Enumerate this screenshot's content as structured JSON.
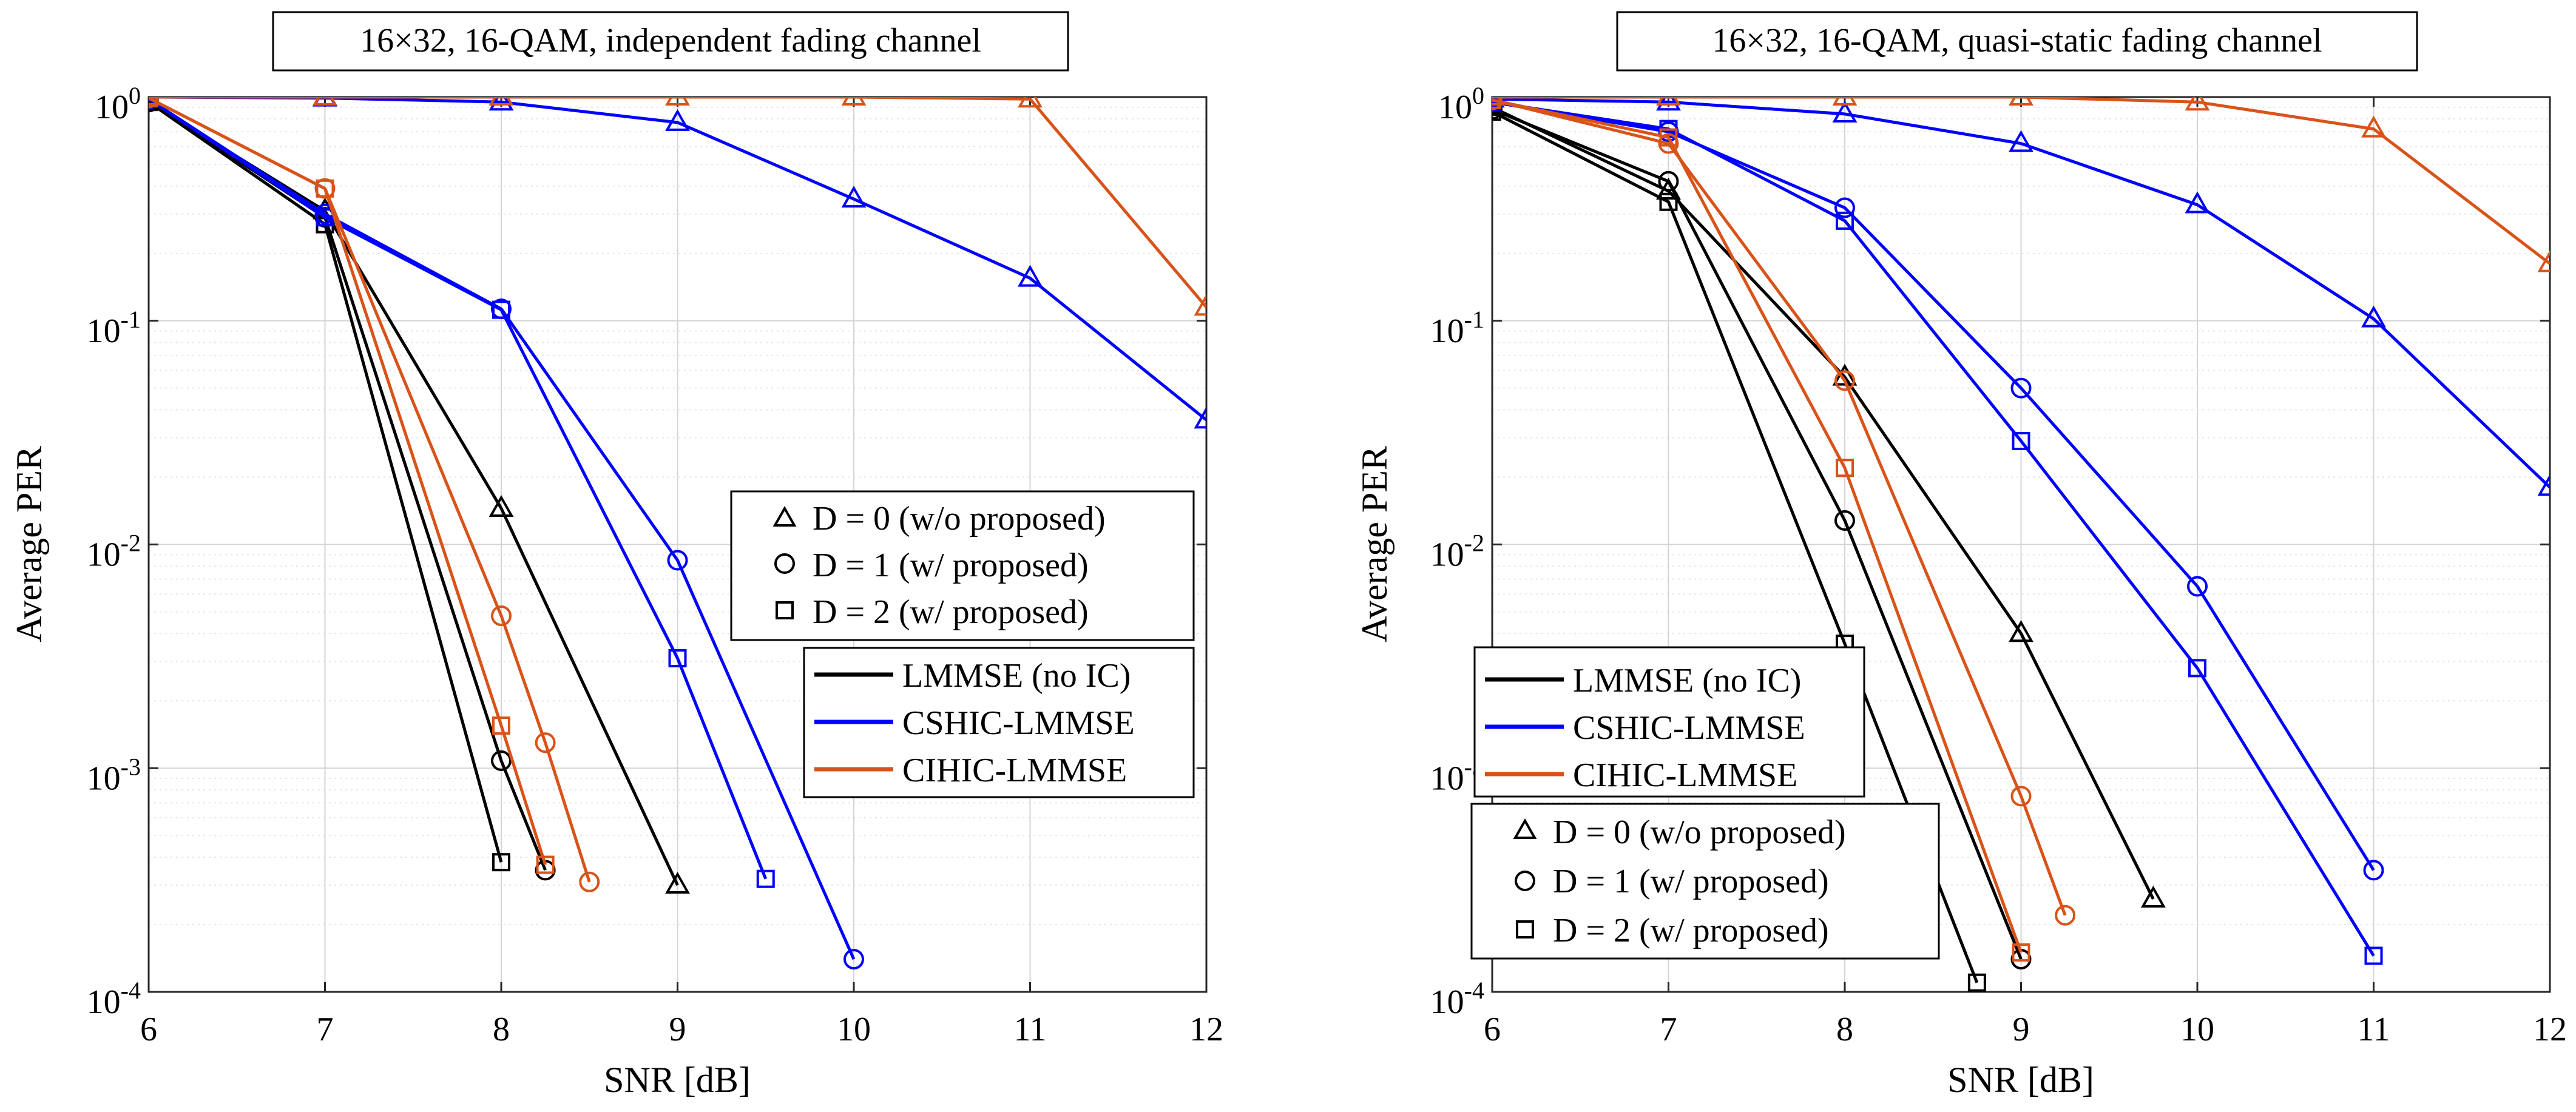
{
  "chart_data": [
    {
      "type": "line",
      "title": "16×32, 16-QAM, independent fading channel",
      "xlabel": "SNR [dB]",
      "ylabel": "Average PER",
      "xlim": [
        6,
        12
      ],
      "ylim": [
        0.0001,
        1
      ],
      "yscale": "log",
      "grid": true,
      "x_ticks": [
        "6",
        "7",
        "8",
        "9",
        "10",
        "11",
        "12"
      ],
      "y_ticks": [
        {
          "base": "10",
          "exp": "0"
        },
        {
          "base": "10",
          "exp": "-1"
        },
        {
          "base": "10",
          "exp": "-2"
        },
        {
          "base": "10",
          "exp": "-3"
        },
        {
          "base": "10",
          "exp": "-4"
        }
      ],
      "legend_marker": {
        "position": "center-right",
        "entries": [
          {
            "marker": "triangle",
            "label": "D = 0 (w/o proposed)"
          },
          {
            "marker": "circle",
            "label": "D = 1 (w/ proposed)"
          },
          {
            "marker": "square",
            "label": "D = 2 (w/ proposed)"
          }
        ]
      },
      "legend_color": {
        "position": "lower-right",
        "entries": [
          {
            "color": "#000000",
            "label": "LMMSE (no IC)"
          },
          {
            "color": "#0000ff",
            "label": "CSHIC-LMMSE"
          },
          {
            "color": "#d95319",
            "label": "CIHIC-LMMSE"
          }
        ]
      },
      "series": [
        {
          "name": "LMMSE (no IC), D = 0",
          "color": "#000000",
          "marker": "triangle",
          "x": [
            6,
            7,
            8,
            9
          ],
          "y": [
            0.95,
            0.31,
            0.0145,
            0.0003
          ]
        },
        {
          "name": "LMMSE (no IC), D = 1",
          "color": "#000000",
          "marker": "circle",
          "x": [
            6,
            7,
            8,
            8.25
          ],
          "y": [
            0.95,
            0.29,
            0.00108,
            0.00035
          ]
        },
        {
          "name": "LMMSE (no IC), D = 2",
          "color": "#000000",
          "marker": "square",
          "x": [
            6,
            7,
            8
          ],
          "y": [
            0.95,
            0.27,
            0.00038
          ]
        },
        {
          "name": "CSHIC-LMMSE, D = 0",
          "color": "#0000ff",
          "marker": "triangle",
          "x": [
            6,
            7,
            8,
            9,
            10,
            11,
            12
          ],
          "y": [
            1.0,
            0.99,
            0.95,
            0.77,
            0.35,
            0.155,
            0.036
          ]
        },
        {
          "name": "CSHIC-LMMSE, D = 1",
          "color": "#0000ff",
          "marker": "circle",
          "x": [
            6,
            7,
            8,
            9,
            10
          ],
          "y": [
            0.98,
            0.3,
            0.113,
            0.0085,
            0.00014
          ]
        },
        {
          "name": "CSHIC-LMMSE, D = 2",
          "color": "#0000ff",
          "marker": "square",
          "x": [
            6,
            7,
            8,
            9,
            9.5
          ],
          "y": [
            0.98,
            0.29,
            0.112,
            0.0031,
            0.00032
          ]
        },
        {
          "name": "CIHIC-LMMSE, D = 0",
          "color": "#d95319",
          "marker": "triangle",
          "x": [
            6,
            7,
            8,
            9,
            10,
            11,
            12
          ],
          "y": [
            1.0,
            1.0,
            1.0,
            1.0,
            1.0,
            0.98,
            0.115
          ]
        },
        {
          "name": "CIHIC-LMMSE, D = 1",
          "color": "#d95319",
          "marker": "circle",
          "x": [
            6,
            7,
            8,
            8.25,
            8.5
          ],
          "y": [
            0.99,
            0.39,
            0.0048,
            0.0013,
            0.00031
          ]
        },
        {
          "name": "CIHIC-LMMSE, D = 2",
          "color": "#d95319",
          "marker": "square",
          "x": [
            6,
            7,
            8,
            8.25
          ],
          "y": [
            0.99,
            0.39,
            0.00155,
            0.00037
          ]
        }
      ]
    },
    {
      "type": "line",
      "title": "16×32, 16-QAM, quasi-static fading channel",
      "xlabel": "SNR [dB]",
      "ylabel": "Average PER",
      "xlim": [
        6,
        12
      ],
      "ylim": [
        0.0001,
        1
      ],
      "yscale": "log",
      "grid": true,
      "x_ticks": [
        "6",
        "7",
        "8",
        "9",
        "10",
        "11",
        "12"
      ],
      "y_ticks": [
        {
          "base": "10",
          "exp": "0"
        },
        {
          "base": "10",
          "exp": "-1"
        },
        {
          "base": "10",
          "exp": "-2"
        },
        {
          "base": "10",
          "exp": "-3"
        },
        {
          "base": "10",
          "exp": "-4"
        }
      ],
      "legend_color": {
        "position": "center-left",
        "entries": [
          {
            "color": "#000000",
            "label": "LMMSE (no IC)"
          },
          {
            "color": "#0000ff",
            "label": "CSHIC-LMMSE"
          },
          {
            "color": "#d95319",
            "label": "CIHIC-LMMSE"
          }
        ]
      },
      "legend_marker": {
        "position": "lower-left",
        "entries": [
          {
            "marker": "triangle",
            "label": "D = 0 (w/o proposed)"
          },
          {
            "marker": "circle",
            "label": "D = 1 (w/ proposed)"
          },
          {
            "marker": "square",
            "label": "D = 2 (w/ proposed)"
          }
        ]
      },
      "series": [
        {
          "name": "LMMSE (no IC), D = 0",
          "color": "#000000",
          "marker": "triangle",
          "x": [
            6,
            7,
            8,
            9,
            9.75
          ],
          "y": [
            0.9,
            0.38,
            0.056,
            0.004,
            0.00026
          ]
        },
        {
          "name": "LMMSE (no IC), D = 1",
          "color": "#000000",
          "marker": "circle",
          "x": [
            6,
            7,
            8,
            9
          ],
          "y": [
            0.88,
            0.42,
            0.0128,
            0.00014
          ]
        },
        {
          "name": "LMMSE (no IC), D = 2",
          "color": "#000000",
          "marker": "square",
          "x": [
            6,
            7,
            8,
            8.75
          ],
          "y": [
            0.86,
            0.34,
            0.0036,
            0.00011
          ]
        },
        {
          "name": "CSHIC-LMMSE, D = 0",
          "color": "#0000ff",
          "marker": "triangle",
          "x": [
            6,
            7,
            8,
            9,
            10,
            11,
            12
          ],
          "y": [
            0.98,
            0.95,
            0.84,
            0.62,
            0.33,
            0.102,
            0.018
          ]
        },
        {
          "name": "CSHIC-LMMSE, D = 1",
          "color": "#0000ff",
          "marker": "circle",
          "x": [
            6,
            7,
            8,
            9,
            10,
            11
          ],
          "y": [
            0.95,
            0.7,
            0.32,
            0.05,
            0.0065,
            0.00035
          ]
        },
        {
          "name": "CSHIC-LMMSE, D = 2",
          "color": "#0000ff",
          "marker": "square",
          "x": [
            6,
            7,
            8,
            9,
            10,
            11
          ],
          "y": [
            0.95,
            0.72,
            0.28,
            0.029,
            0.0028,
            0.000145
          ]
        },
        {
          "name": "CIHIC-LMMSE, D = 0",
          "color": "#d95319",
          "marker": "triangle",
          "x": [
            6,
            7,
            8,
            9,
            10,
            11,
            12
          ],
          "y": [
            1.0,
            1.0,
            1.0,
            1.0,
            0.95,
            0.72,
            0.18
          ]
        },
        {
          "name": "CIHIC-LMMSE, D = 1",
          "color": "#d95319",
          "marker": "circle",
          "x": [
            6,
            7,
            8,
            9,
            9.25
          ],
          "y": [
            0.97,
            0.62,
            0.054,
            0.00075,
            0.00022
          ]
        },
        {
          "name": "CIHIC-LMMSE, D = 2",
          "color": "#d95319",
          "marker": "square",
          "x": [
            6,
            7,
            8,
            9
          ],
          "y": [
            0.97,
            0.66,
            0.022,
            0.00015
          ]
        }
      ]
    }
  ]
}
